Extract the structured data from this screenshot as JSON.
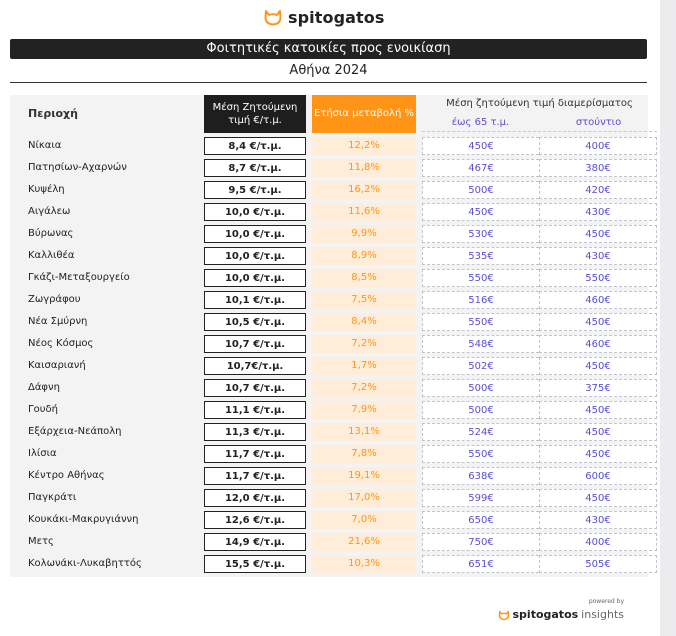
{
  "brand": {
    "name": "spitogatos",
    "accent": "#ff9416"
  },
  "title": "Φοιτητικές κατοικίες προς ενοικίαση",
  "subtitle": "Αθήνα 2024",
  "headers": {
    "area": "Περιοχή",
    "price_line1": "Μέση Ζητούμενη",
    "price_line2": "τιμή €/τ.μ.",
    "change": "Ετήσια μεταβολή %",
    "group": "Μέση ζητούμενη τιμή διαμερίσματος",
    "sub1": "έως 65 τ.μ.",
    "sub2": "στούντιο"
  },
  "rows": [
    {
      "area": "Νίκαια",
      "price": "8,4 €/τ.μ.",
      "change": "12,2%",
      "upto65": "450€",
      "studio": "400€"
    },
    {
      "area": "Πατησίων-Αχαρνών",
      "price": "8,7 €/τ.μ.",
      "change": "11,8%",
      "upto65": "467€",
      "studio": "380€"
    },
    {
      "area": "Κυψέλη",
      "price": "9,5 €/τ.μ.",
      "change": "16,2%",
      "upto65": "500€",
      "studio": "420€"
    },
    {
      "area": "Αιγάλεω",
      "price": "10,0 €/τ.μ.",
      "change": "11,6%",
      "upto65": "450€",
      "studio": "430€"
    },
    {
      "area": "Βύρωνας",
      "price": "10,0 €/τ.μ.",
      "change": "9,9%",
      "upto65": "530€",
      "studio": "450€"
    },
    {
      "area": "Καλλιθέα",
      "price": "10,0 €/τ.μ.",
      "change": "8,9%",
      "upto65": "535€",
      "studio": "430€"
    },
    {
      "area": "Γκάζι-Μεταξουργείο",
      "price": "10,0 €/τ.μ.",
      "change": "8,5%",
      "upto65": "550€",
      "studio": "550€"
    },
    {
      "area": "Ζωγράφου",
      "price": "10,1 €/τ.μ.",
      "change": "7,5%",
      "upto65": "516€",
      "studio": "460€"
    },
    {
      "area": "Νέα Σμύρνη",
      "price": "10,5 €/τ.μ.",
      "change": "8,4%",
      "upto65": "550€",
      "studio": "450€"
    },
    {
      "area": "Νέος Κόσμος",
      "price": "10,7 €/τ.μ.",
      "change": "7,2%",
      "upto65": "548€",
      "studio": "460€"
    },
    {
      "area": "Καισαριανή",
      "price": "10,7€/τ.μ.",
      "change": "1,7%",
      "upto65": "502€",
      "studio": "450€"
    },
    {
      "area": "Δάφνη",
      "price": "10,7 €/τ.μ.",
      "change": "7,2%",
      "upto65": "500€",
      "studio": "375€"
    },
    {
      "area": "Γουδή",
      "price": "11,1 €/τ.μ.",
      "change": "7,9%",
      "upto65": "500€",
      "studio": "450€"
    },
    {
      "area": "Εξάρχεια-Νεάπολη",
      "price": "11,3 €/τ.μ.",
      "change": "13,1%",
      "upto65": "524€",
      "studio": "450€"
    },
    {
      "area": "Ιλίσια",
      "price": "11,7 €/τ.μ.",
      "change": "7,8%",
      "upto65": "550€",
      "studio": "450€"
    },
    {
      "area": "Κέντρο Αθήνας",
      "price": "11,7 €/τ.μ.",
      "change": "19,1%",
      "upto65": "638€",
      "studio": "600€"
    },
    {
      "area": "Παγκράτι",
      "price": "12,0 €/τ.μ.",
      "change": "17,0%",
      "upto65": "599€",
      "studio": "450€"
    },
    {
      "area": "Κουκάκι-Μακρυγιάννη",
      "price": "12,6 €/τ.μ.",
      "change": "7,0%",
      "upto65": "650€",
      "studio": "430€"
    },
    {
      "area": "Μετς",
      "price": "14,9 €/τ.μ.",
      "change": "21,6%",
      "upto65": "750€",
      "studio": "400€"
    },
    {
      "area": "Κολωνάκι-Λυκαβηττός",
      "price": "15,5 €/τ.μ.",
      "change": "10,3%",
      "upto65": "651€",
      "studio": "505€"
    }
  ],
  "footer": {
    "powered": "powered by",
    "brand": "spitogatos",
    "suffix": "insights"
  }
}
